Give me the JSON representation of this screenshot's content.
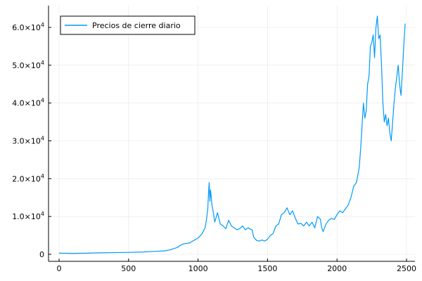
{
  "chart_data": {
    "type": "line",
    "title": "",
    "xlabel": "",
    "ylabel": "",
    "xlim": [
      0,
      2500
    ],
    "ylim": [
      0,
      65000
    ],
    "grid": true,
    "legend_position": "top-left",
    "x_ticks": [
      0,
      500,
      1000,
      1500,
      2000,
      2500
    ],
    "y_ticks": [
      {
        "value": 0,
        "mantissa": "0",
        "exp": ""
      },
      {
        "value": 10000,
        "mantissa": "1.0×10",
        "exp": "4"
      },
      {
        "value": 20000,
        "mantissa": "2.0×10",
        "exp": "4"
      },
      {
        "value": 30000,
        "mantissa": "3.0×10",
        "exp": "4"
      },
      {
        "value": 40000,
        "mantissa": "4.0×10",
        "exp": "4"
      },
      {
        "value": 50000,
        "mantissa": "5.0×10",
        "exp": "4"
      },
      {
        "value": 60000,
        "mantissa": "6.0×10",
        "exp": "4"
      }
    ],
    "series": [
      {
        "name": "Precios de cierre diario",
        "color": "#009af9",
        "points": [
          [
            0,
            300
          ],
          [
            100,
            250
          ],
          [
            200,
            300
          ],
          [
            300,
            400
          ],
          [
            400,
            450
          ],
          [
            500,
            500
          ],
          [
            600,
            600
          ],
          [
            700,
            800
          ],
          [
            760,
            900
          ],
          [
            800,
            1200
          ],
          [
            850,
            1800
          ],
          [
            880,
            2500
          ],
          [
            900,
            2800
          ],
          [
            940,
            3000
          ],
          [
            970,
            3700
          ],
          [
            1000,
            4300
          ],
          [
            1030,
            5500
          ],
          [
            1050,
            7000
          ],
          [
            1060,
            9000
          ],
          [
            1070,
            12000
          ],
          [
            1075,
            16000
          ],
          [
            1080,
            19000
          ],
          [
            1085,
            14000
          ],
          [
            1090,
            17000
          ],
          [
            1100,
            13000
          ],
          [
            1110,
            11000
          ],
          [
            1120,
            8500
          ],
          [
            1140,
            11000
          ],
          [
            1160,
            8000
          ],
          [
            1180,
            7500
          ],
          [
            1200,
            6800
          ],
          [
            1220,
            9000
          ],
          [
            1240,
            7500
          ],
          [
            1260,
            7000
          ],
          [
            1280,
            6500
          ],
          [
            1300,
            6800
          ],
          [
            1320,
            7500
          ],
          [
            1340,
            6500
          ],
          [
            1360,
            7000
          ],
          [
            1390,
            6400
          ],
          [
            1400,
            4500
          ],
          [
            1420,
            3700
          ],
          [
            1440,
            3500
          ],
          [
            1460,
            3800
          ],
          [
            1480,
            3500
          ],
          [
            1500,
            4000
          ],
          [
            1520,
            5000
          ],
          [
            1540,
            5500
          ],
          [
            1560,
            7500
          ],
          [
            1580,
            8000
          ],
          [
            1600,
            10500
          ],
          [
            1620,
            11000
          ],
          [
            1640,
            12300
          ],
          [
            1660,
            10500
          ],
          [
            1680,
            11500
          ],
          [
            1700,
            9500
          ],
          [
            1720,
            8000
          ],
          [
            1740,
            8200
          ],
          [
            1760,
            7500
          ],
          [
            1780,
            8500
          ],
          [
            1800,
            7500
          ],
          [
            1820,
            8500
          ],
          [
            1840,
            7000
          ],
          [
            1860,
            10000
          ],
          [
            1880,
            9300
          ],
          [
            1890,
            7000
          ],
          [
            1900,
            6000
          ],
          [
            1920,
            8000
          ],
          [
            1940,
            9000
          ],
          [
            1960,
            9500
          ],
          [
            1980,
            9200
          ],
          [
            2000,
            10500
          ],
          [
            2020,
            11500
          ],
          [
            2040,
            11000
          ],
          [
            2060,
            12000
          ],
          [
            2080,
            13000
          ],
          [
            2100,
            15000
          ],
          [
            2120,
            18000
          ],
          [
            2140,
            19000
          ],
          [
            2160,
            23000
          ],
          [
            2170,
            28000
          ],
          [
            2180,
            34000
          ],
          [
            2190,
            40000
          ],
          [
            2200,
            36000
          ],
          [
            2210,
            38000
          ],
          [
            2220,
            45000
          ],
          [
            2230,
            47000
          ],
          [
            2240,
            55000
          ],
          [
            2250,
            56000
          ],
          [
            2260,
            58000
          ],
          [
            2270,
            52000
          ],
          [
            2280,
            60000
          ],
          [
            2290,
            63000
          ],
          [
            2300,
            57000
          ],
          [
            2310,
            58000
          ],
          [
            2320,
            50000
          ],
          [
            2330,
            40000
          ],
          [
            2340,
            35000
          ],
          [
            2350,
            37000
          ],
          [
            2360,
            34000
          ],
          [
            2370,
            36000
          ],
          [
            2380,
            32000
          ],
          [
            2390,
            30000
          ],
          [
            2400,
            35000
          ],
          [
            2410,
            40000
          ],
          [
            2420,
            44000
          ],
          [
            2430,
            47000
          ],
          [
            2440,
            50000
          ],
          [
            2450,
            45000
          ],
          [
            2460,
            42000
          ],
          [
            2470,
            48000
          ],
          [
            2480,
            55000
          ],
          [
            2490,
            61000
          ]
        ]
      }
    ]
  }
}
